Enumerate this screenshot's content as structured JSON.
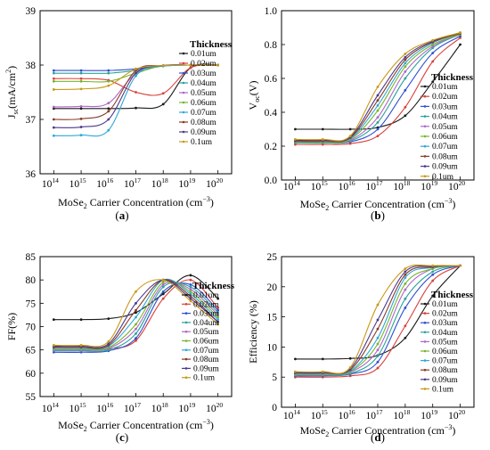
{
  "legend_title": "Thickness",
  "thickness_labels": [
    "0.01um",
    "0.02um",
    "0.03um",
    "0.04um",
    "0.05um",
    "0.06um",
    "0.07um",
    "0.08um",
    "0.09um",
    "0.1um"
  ],
  "series_colors": [
    "#1a1a1a",
    "#d9403a",
    "#2f4fd0",
    "#2aa39a",
    "#b066c9",
    "#77b52c",
    "#2fa8d8",
    "#8a3a26",
    "#4d3a8a",
    "#c99a17"
  ],
  "x_ticks": [
    "14",
    "15",
    "16",
    "17",
    "18",
    "19",
    "20"
  ],
  "chart_data": [
    {
      "id": "a",
      "type": "line",
      "caption": "a",
      "xlabel_parts": [
        "MoSe",
        "2",
        " Carrier Concentration (cm",
        "−3",
        ")"
      ],
      "ylabel_parts": [
        "J",
        "sc",
        "(mA/cm",
        "2",
        ")"
      ],
      "x_log10": [
        14,
        15,
        16,
        17,
        18,
        19,
        20
      ],
      "ylim": [
        36,
        39
      ],
      "yticks": [
        36,
        37,
        38,
        39
      ],
      "series": [
        {
          "name": "0.01um",
          "values": [
            37.2,
            37.2,
            37.2,
            37.21,
            37.28,
            37.95,
            38.0
          ]
        },
        {
          "name": "0.02um",
          "values": [
            37.75,
            37.75,
            37.72,
            37.5,
            37.48,
            37.95,
            38.0
          ]
        },
        {
          "name": "0.03um",
          "values": [
            37.9,
            37.9,
            37.9,
            37.93,
            37.99,
            38.0,
            38.0
          ]
        },
        {
          "name": "0.04um",
          "values": [
            37.85,
            37.85,
            37.85,
            37.9,
            37.98,
            38.0,
            38.0
          ]
        },
        {
          "name": "0.05um",
          "values": [
            37.23,
            37.24,
            37.3,
            37.85,
            37.99,
            38.0,
            38.0
          ]
        },
        {
          "name": "0.06um",
          "values": [
            37.7,
            37.7,
            37.7,
            37.85,
            37.99,
            38.0,
            38.0
          ]
        },
        {
          "name": "0.07um",
          "values": [
            36.7,
            36.71,
            36.8,
            37.8,
            37.99,
            38.0,
            38.0
          ]
        },
        {
          "name": "0.08um",
          "values": [
            37.0,
            37.01,
            37.15,
            37.9,
            37.99,
            38.0,
            38.0
          ]
        },
        {
          "name": "0.09um",
          "values": [
            36.85,
            36.86,
            37.0,
            37.85,
            37.99,
            38.0,
            38.0
          ]
        },
        {
          "name": "0.1um",
          "values": [
            37.55,
            37.56,
            37.62,
            37.93,
            37.99,
            38.0,
            38.0
          ]
        }
      ]
    },
    {
      "id": "b",
      "type": "line",
      "caption": "b",
      "xlabel_parts": [
        "MoSe",
        "2",
        " Carrier Concentration (cm",
        "−3",
        ")"
      ],
      "ylabel_parts": [
        "V",
        "oc",
        "(V)",
        "",
        ""
      ],
      "x_log10": [
        14,
        15,
        16,
        17,
        18,
        19,
        20
      ],
      "ylim": [
        0.0,
        1.0
      ],
      "yticks": [
        0.0,
        0.2,
        0.4,
        0.6,
        0.8,
        1.0
      ],
      "series": [
        {
          "name": "0.01um",
          "values": [
            0.3,
            0.3,
            0.3,
            0.31,
            0.38,
            0.58,
            0.8
          ]
        },
        {
          "name": "0.02um",
          "values": [
            0.21,
            0.21,
            0.215,
            0.26,
            0.43,
            0.7,
            0.84
          ]
        },
        {
          "name": "0.03um",
          "values": [
            0.22,
            0.22,
            0.225,
            0.3,
            0.53,
            0.75,
            0.85
          ]
        },
        {
          "name": "0.04um",
          "values": [
            0.22,
            0.22,
            0.23,
            0.34,
            0.6,
            0.78,
            0.86
          ]
        },
        {
          "name": "0.05um",
          "values": [
            0.225,
            0.225,
            0.235,
            0.37,
            0.64,
            0.79,
            0.86
          ]
        },
        {
          "name": "0.06um",
          "values": [
            0.225,
            0.225,
            0.24,
            0.41,
            0.67,
            0.8,
            0.86
          ]
        },
        {
          "name": "0.07um",
          "values": [
            0.23,
            0.23,
            0.245,
            0.44,
            0.69,
            0.81,
            0.865
          ]
        },
        {
          "name": "0.08um",
          "values": [
            0.23,
            0.23,
            0.25,
            0.47,
            0.71,
            0.815,
            0.865
          ]
        },
        {
          "name": "0.09um",
          "values": [
            0.235,
            0.235,
            0.255,
            0.5,
            0.725,
            0.82,
            0.87
          ]
        },
        {
          "name": "0.1um",
          "values": [
            0.24,
            0.24,
            0.26,
            0.55,
            0.745,
            0.825,
            0.87
          ]
        }
      ]
    },
    {
      "id": "c",
      "type": "line",
      "caption": "c",
      "xlabel_parts": [
        "MoSe",
        "2",
        " Carrier Concentration (cm",
        "−3",
        ")"
      ],
      "ylabel_parts": [
        "FF(%)",
        "",
        "",
        "",
        ""
      ],
      "x_log10": [
        14,
        15,
        16,
        17,
        18,
        19,
        20
      ],
      "ylim": [
        55,
        85
      ],
      "yticks": [
        55,
        60,
        65,
        70,
        75,
        80,
        85
      ],
      "series": [
        {
          "name": "0.01um",
          "values": [
            71.5,
            71.5,
            71.7,
            73.0,
            77.0,
            81.0,
            76.0
          ]
        },
        {
          "name": "0.02um",
          "values": [
            65.0,
            65.0,
            65.2,
            67.0,
            76.0,
            80.0,
            74.0
          ]
        },
        {
          "name": "0.03um",
          "values": [
            64.5,
            64.5,
            64.8,
            67.5,
            77.5,
            79.0,
            73.5
          ]
        },
        {
          "name": "0.04um",
          "values": [
            64.8,
            64.8,
            65.0,
            68.5,
            78.5,
            78.5,
            73.0
          ]
        },
        {
          "name": "0.05um",
          "values": [
            65.0,
            65.0,
            65.3,
            69.5,
            79.0,
            78.0,
            72.5
          ]
        },
        {
          "name": "0.06um",
          "values": [
            65.2,
            65.2,
            65.5,
            70.5,
            79.5,
            77.5,
            72.0
          ]
        },
        {
          "name": "0.07um",
          "values": [
            65.4,
            65.4,
            65.8,
            72.0,
            80.0,
            77.0,
            71.5
          ]
        },
        {
          "name": "0.08um",
          "values": [
            65.6,
            65.6,
            66.0,
            73.5,
            80.0,
            76.5,
            71.0
          ]
        },
        {
          "name": "0.09um",
          "values": [
            65.8,
            65.8,
            66.3,
            75.0,
            80.0,
            76.0,
            71.0
          ]
        },
        {
          "name": "0.1um",
          "values": [
            66.0,
            66.0,
            66.8,
            77.5,
            80.0,
            75.5,
            70.5
          ]
        }
      ]
    },
    {
      "id": "d",
      "type": "line",
      "caption": "d",
      "xlabel_parts": [
        "MoSe",
        "2",
        " Carrier Concentration (cm",
        "−3",
        ")"
      ],
      "ylabel_parts": [
        "Efficiency (%)",
        "",
        "",
        "",
        ""
      ],
      "x_log10": [
        14,
        15,
        16,
        17,
        18,
        19,
        20
      ],
      "ylim": [
        0,
        25
      ],
      "yticks": [
        0,
        5,
        10,
        15,
        20,
        25
      ],
      "series": [
        {
          "name": "0.01um",
          "values": [
            8.0,
            8.0,
            8.1,
            8.6,
            11.5,
            18.5,
            23.5
          ]
        },
        {
          "name": "0.02um",
          "values": [
            5.0,
            5.0,
            5.2,
            6.5,
            13.5,
            21.0,
            23.5
          ]
        },
        {
          "name": "0.03um",
          "values": [
            5.2,
            5.2,
            5.5,
            7.5,
            16.5,
            22.0,
            23.5
          ]
        },
        {
          "name": "0.04um",
          "values": [
            5.3,
            5.3,
            5.6,
            8.5,
            18.0,
            22.5,
            23.5
          ]
        },
        {
          "name": "0.05um",
          "values": [
            5.4,
            5.4,
            5.8,
            9.5,
            19.5,
            23.0,
            23.5
          ]
        },
        {
          "name": "0.06um",
          "values": [
            5.5,
            5.5,
            5.9,
            10.5,
            20.5,
            23.0,
            23.5
          ]
        },
        {
          "name": "0.07um",
          "values": [
            5.6,
            5.6,
            6.0,
            11.5,
            21.5,
            23.2,
            23.5
          ]
        },
        {
          "name": "0.08um",
          "values": [
            5.7,
            5.7,
            6.2,
            13.0,
            22.0,
            23.3,
            23.5
          ]
        },
        {
          "name": "0.09um",
          "values": [
            5.8,
            5.8,
            6.4,
            14.5,
            22.5,
            23.4,
            23.5
          ]
        },
        {
          "name": "0.1um",
          "values": [
            5.9,
            5.9,
            6.6,
            17.0,
            23.0,
            23.5,
            23.5
          ]
        }
      ]
    }
  ]
}
